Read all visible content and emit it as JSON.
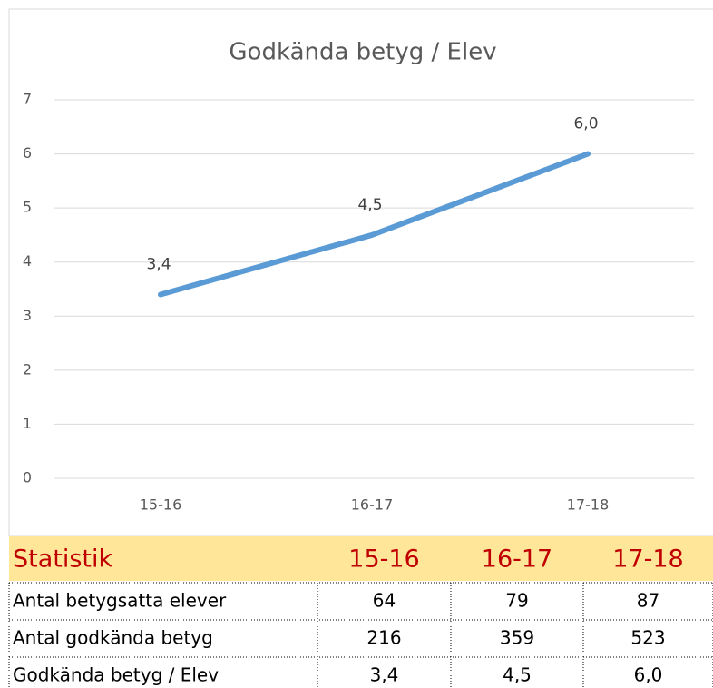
{
  "chart_data": {
    "type": "line",
    "title": "Godkända betyg / Elev",
    "categories": [
      "15-16",
      "16-17",
      "17-18"
    ],
    "values": [
      3.4,
      4.5,
      6.0
    ],
    "value_labels": [
      "3,4",
      "4,5",
      "6,0"
    ],
    "color": "#5b9bd5",
    "ylim": [
      0,
      7
    ],
    "yticks": [
      0,
      1,
      2,
      3,
      4,
      5,
      6,
      7
    ],
    "grid": true
  },
  "table": {
    "header": [
      "Statistik",
      "15-16",
      "16-17",
      "17-18"
    ],
    "rows": [
      [
        "Antal betygsatta elever",
        "64",
        "79",
        "87"
      ],
      [
        "Antal godkända betyg",
        "216",
        "359",
        "523"
      ],
      [
        "Godkända betyg / Elev",
        "3,4",
        "4,5",
        "6,0"
      ]
    ]
  }
}
